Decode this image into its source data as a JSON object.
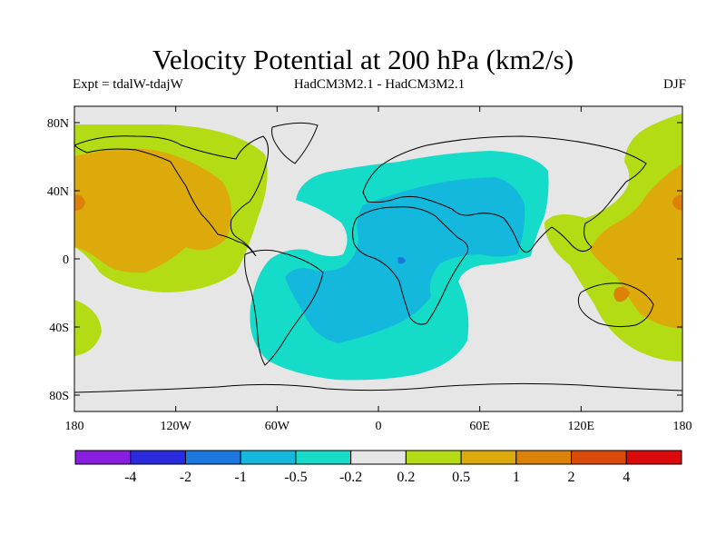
{
  "title": "Velocity Potential at 200 hPa (km2/s)",
  "subtitle_left": "Expt = tdalW-tdajW",
  "subtitle_center": "HadCM3M2.1 - HadCM3M2.1",
  "subtitle_right": "DJF",
  "lat_labels": [
    "80N",
    "40N",
    "0",
    "40S",
    "80S"
  ],
  "lon_labels": [
    "180",
    "120W",
    "60W",
    "0",
    "60E",
    "120E",
    "180"
  ],
  "colorbar": {
    "labels": [
      "-4",
      "-2",
      "-1",
      "-0.5",
      "-0.2",
      "0.2",
      "0.5",
      "1",
      "2",
      "4"
    ],
    "colors": [
      "#8a1ee0",
      "#2a2ae0",
      "#1a78e0",
      "#14b8dc",
      "#14dcc8",
      "#e6e6e6",
      "#b4dc14",
      "#dcaa0a",
      "#dc820a",
      "#dc4a0a",
      "#dc0a0a"
    ]
  },
  "colors": {
    "background": "#e6e6e6",
    "neg_light": "#14dcc8",
    "neg_mid": "#14b8dc",
    "neg_dark": "#1a78e0",
    "pos_light": "#b4dc14",
    "pos_mid": "#dcaa0a",
    "pos_dark": "#dc820a"
  }
}
